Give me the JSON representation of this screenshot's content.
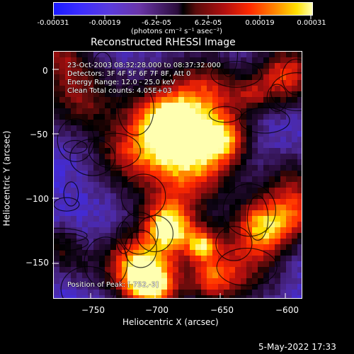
{
  "colorbar": {
    "tick_labels": [
      "-0.00031",
      "-0.00019",
      "-6.2e-05",
      "6.2e-05",
      "0.00019",
      "0.00031"
    ],
    "units": "(photons cm⁻² s⁻¹ asec⁻²)",
    "colors": [
      "#1a1aff",
      "#3b2cff",
      "#5b3bdc",
      "#6a35a8",
      "#000000",
      "#b10f0f",
      "#ff2a00",
      "#ff8a00",
      "#ffe000",
      "#ffffb0"
    ]
  },
  "chart_data": {
    "type": "heatmap",
    "title": "Reconstructed RHESSI Image",
    "xlabel": "Heliocentric X (arcsec)",
    "ylabel": "Heliocentric Y (arcsec)",
    "xlim": [
      -779,
      -588
    ],
    "ylim": [
      -178,
      12
    ],
    "x_ticks": [
      -750,
      -700,
      -650,
      -600
    ],
    "y_ticks": [
      0,
      -50,
      -100,
      -150
    ],
    "x_tick_labels": [
      "−750",
      "−700",
      "−650",
      "−600"
    ],
    "y_tick_labels": [
      "0",
      "−50",
      "−100",
      "−150"
    ],
    "colorbar_range": [
      -0.00031,
      0.00031
    ],
    "annotations": {
      "time": "23-Oct-2003 08:32:28.000 to 08:37:32.000",
      "detectors": "Detectors: 3F 4F 5F 6F 7F 8F, Att 0",
      "energy": "Energy Range: 12.0 - 25.0 keV",
      "clean": "Clean      Total counts: 4.05E+03",
      "peak": "Position of Peak: [-752,-3]"
    }
  },
  "timestamp": "5-May-2022 17:33"
}
